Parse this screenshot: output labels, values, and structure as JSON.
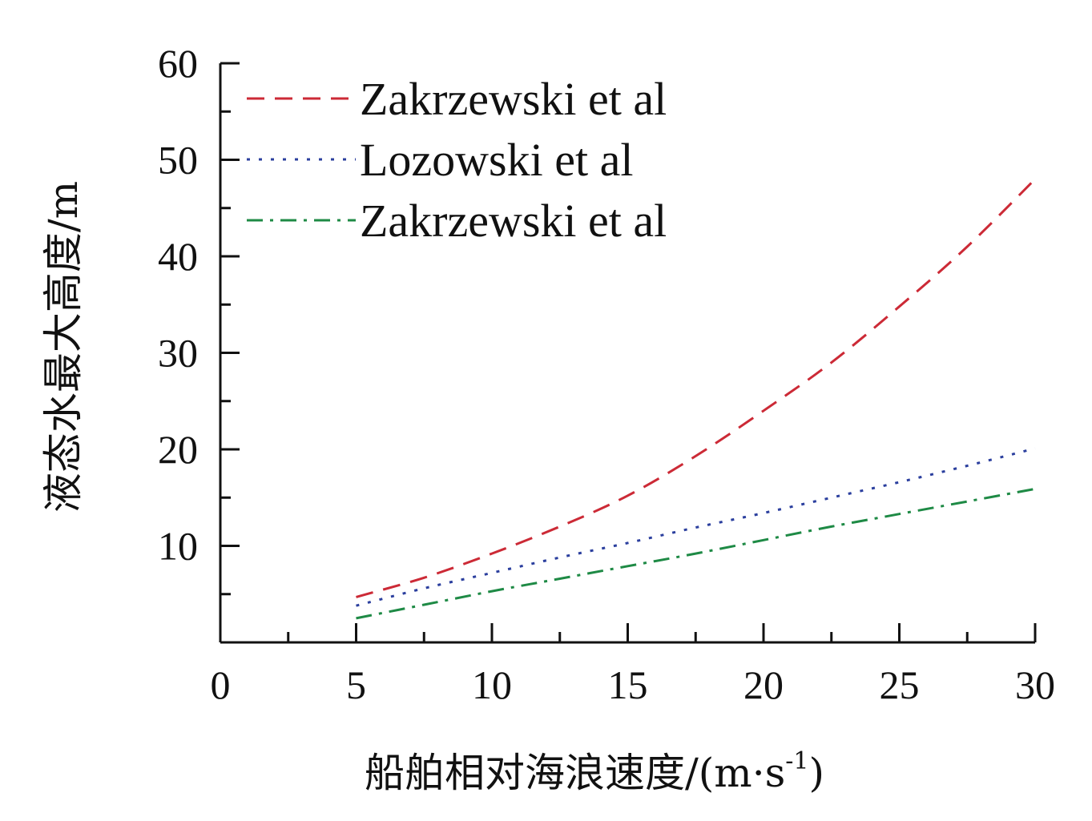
{
  "chart_data": {
    "type": "line",
    "title": "",
    "xlabel": "船舶相对海浪速度/(m·s",
    "xlabel_sup": "-1",
    "xlabel_close": ")",
    "ylabel": "液态水最大高度/m",
    "xlim": [
      0,
      30
    ],
    "ylim": [
      0,
      60
    ],
    "x_ticks": [
      0,
      5,
      10,
      15,
      20,
      25,
      30
    ],
    "x_tick_labels": [
      "0",
      "5",
      "10",
      "15",
      "20",
      "25",
      "30"
    ],
    "y_ticks": [
      10,
      20,
      30,
      40,
      50,
      60
    ],
    "y_tick_labels": [
      "10",
      "20",
      "30",
      "40",
      "50",
      "60"
    ],
    "grid": false,
    "legend_position": "top-left",
    "x": [
      5,
      7.5,
      10,
      12.5,
      15,
      17.5,
      20,
      22.5,
      25,
      27.5,
      30
    ],
    "series": [
      {
        "name": "Zakrzewski et al",
        "color": "#cc2a36",
        "dash": "dashed",
        "values": [
          4.7,
          6.7,
          9.2,
          12.0,
          15.2,
          19.3,
          24.0,
          29.0,
          34.8,
          41.0,
          48.0
        ]
      },
      {
        "name": "Lozowski et al",
        "color": "#2b3f9e",
        "dash": "dotted",
        "values": [
          3.8,
          5.6,
          7.2,
          8.8,
          10.3,
          11.9,
          13.4,
          15.0,
          16.6,
          18.3,
          20.1
        ]
      },
      {
        "name": "Zakrzewski et al",
        "color": "#1e8a45",
        "dash": "dashdot",
        "values": [
          2.5,
          3.9,
          5.3,
          6.6,
          7.9,
          9.2,
          10.6,
          12.0,
          13.3,
          14.6,
          15.9
        ]
      }
    ]
  }
}
